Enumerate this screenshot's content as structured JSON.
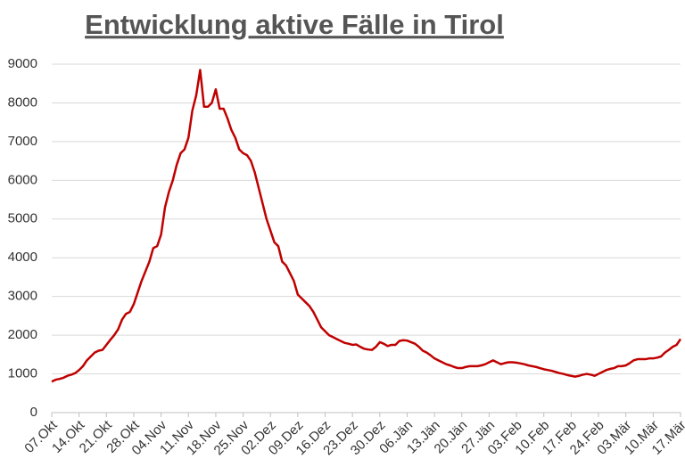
{
  "chart_data": {
    "type": "line",
    "title": "Entwicklung aktive Fälle in Tirol",
    "categories": [
      "07.Okt",
      null,
      null,
      null,
      null,
      null,
      null,
      "14.Okt",
      null,
      null,
      null,
      null,
      null,
      null,
      "21.Okt",
      null,
      null,
      null,
      null,
      null,
      null,
      "28.Okt",
      null,
      null,
      null,
      null,
      null,
      null,
      "04.Nov",
      null,
      null,
      null,
      null,
      null,
      null,
      "11.Nov",
      null,
      null,
      null,
      null,
      null,
      null,
      "18.Nov",
      null,
      null,
      null,
      null,
      null,
      null,
      "25.Nov",
      null,
      null,
      null,
      null,
      null,
      null,
      "02.Dez",
      null,
      null,
      null,
      null,
      null,
      null,
      "09.Dez",
      null,
      null,
      null,
      null,
      null,
      null,
      "16.Dez",
      null,
      null,
      null,
      null,
      null,
      null,
      "23.Dez",
      null,
      null,
      null,
      null,
      null,
      null,
      "30.Dez",
      null,
      null,
      null,
      null,
      null,
      null,
      "06.Jän",
      null,
      null,
      null,
      null,
      null,
      null,
      "13.Jän",
      null,
      null,
      null,
      null,
      null,
      null,
      "20.Jän",
      null,
      null,
      null,
      null,
      null,
      null,
      "27.Jän",
      null,
      null,
      null,
      null,
      null,
      null,
      "03.Feb",
      null,
      null,
      null,
      null,
      null,
      null,
      "10.Feb",
      null,
      null,
      null,
      null,
      null,
      null,
      "17.Feb",
      null,
      null,
      null,
      null,
      null,
      null,
      "24.Feb",
      null,
      null,
      null,
      null,
      null,
      null,
      "03.Mär",
      null,
      null,
      null,
      null,
      null,
      null,
      "10.Mär",
      null,
      null,
      null,
      null,
      null,
      null,
      "17.Mär"
    ],
    "values": [
      800,
      850,
      870,
      900,
      950,
      980,
      1020,
      1100,
      1200,
      1350,
      1450,
      1550,
      1600,
      1620,
      1750,
      1880,
      2000,
      2150,
      2400,
      2550,
      2600,
      2800,
      3100,
      3400,
      3650,
      3900,
      4250,
      4300,
      4600,
      5300,
      5700,
      6000,
      6400,
      6700,
      6800,
      7100,
      7800,
      8200,
      8850,
      7900,
      7900,
      8000,
      8350,
      7850,
      7850,
      7600,
      7300,
      7100,
      6800,
      6700,
      6650,
      6500,
      6200,
      5800,
      5400,
      5000,
      4700,
      4400,
      4300,
      3900,
      3800,
      3600,
      3400,
      3050,
      2950,
      2850,
      2750,
      2600,
      2400,
      2200,
      2100,
      2000,
      1950,
      1900,
      1850,
      1800,
      1780,
      1750,
      1760,
      1700,
      1650,
      1630,
      1620,
      1700,
      1820,
      1780,
      1720,
      1750,
      1750,
      1850,
      1870,
      1860,
      1820,
      1780,
      1700,
      1600,
      1550,
      1480,
      1400,
      1350,
      1300,
      1250,
      1220,
      1180,
      1150,
      1150,
      1180,
      1200,
      1200,
      1200,
      1220,
      1250,
      1300,
      1350,
      1300,
      1250,
      1280,
      1300,
      1300,
      1290,
      1270,
      1250,
      1220,
      1200,
      1180,
      1150,
      1120,
      1100,
      1080,
      1050,
      1020,
      1000,
      970,
      950,
      930,
      950,
      980,
      1000,
      980,
      950,
      1000,
      1050,
      1100,
      1130,
      1150,
      1200,
      1200,
      1220,
      1280,
      1350,
      1380,
      1380,
      1380,
      1400,
      1400,
      1420,
      1450,
      1550,
      1620,
      1700,
      1750,
      1900
    ],
    "color": "#c00000",
    "ylim": [
      0,
      9000
    ],
    "yticks": [
      0,
      1000,
      2000,
      3000,
      4000,
      5000,
      6000,
      7000,
      8000,
      9000
    ],
    "grid": true
  }
}
